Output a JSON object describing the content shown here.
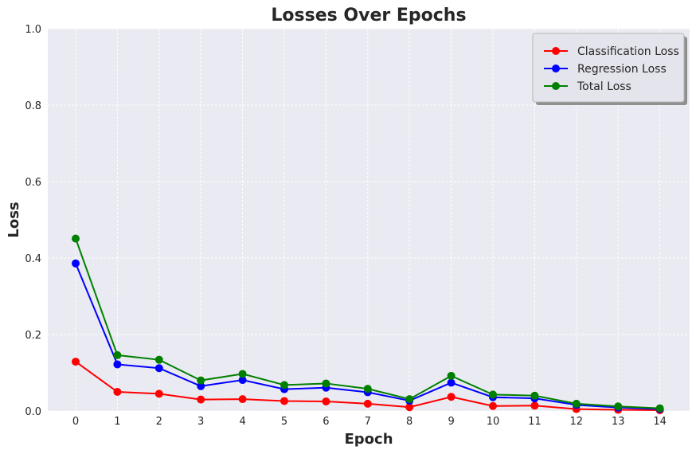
{
  "chart_data": {
    "type": "line",
    "title": "Losses Over Epochs",
    "xlabel": "Epoch",
    "ylabel": "Loss",
    "x": [
      0,
      1,
      2,
      3,
      4,
      5,
      6,
      7,
      8,
      9,
      10,
      11,
      12,
      13,
      14
    ],
    "ylim": [
      0,
      1.0
    ],
    "yticks": [
      "0.0",
      "0.2",
      "0.4",
      "0.6",
      "0.8",
      "1.0"
    ],
    "xticks": [
      "0",
      "1",
      "2",
      "3",
      "4",
      "5",
      "6",
      "7",
      "8",
      "9",
      "10",
      "11",
      "12",
      "13",
      "14"
    ],
    "grid": true,
    "legend_position": "top-right",
    "series": [
      {
        "name": "Classification Loss",
        "color": "#ff0000",
        "values": [
          0.129,
          0.05,
          0.045,
          0.03,
          0.031,
          0.026,
          0.025,
          0.019,
          0.01,
          0.037,
          0.013,
          0.014,
          0.005,
          0.003,
          0.002
        ]
      },
      {
        "name": "Regression Loss",
        "color": "#0000ff",
        "values": [
          0.386,
          0.122,
          0.112,
          0.065,
          0.081,
          0.057,
          0.061,
          0.049,
          0.027,
          0.074,
          0.036,
          0.033,
          0.016,
          0.009,
          0.005
        ]
      },
      {
        "name": "Total Loss",
        "color": "#008000",
        "values": [
          0.451,
          0.146,
          0.134,
          0.08,
          0.097,
          0.068,
          0.072,
          0.058,
          0.031,
          0.092,
          0.043,
          0.04,
          0.019,
          0.012,
          0.007
        ]
      }
    ]
  }
}
